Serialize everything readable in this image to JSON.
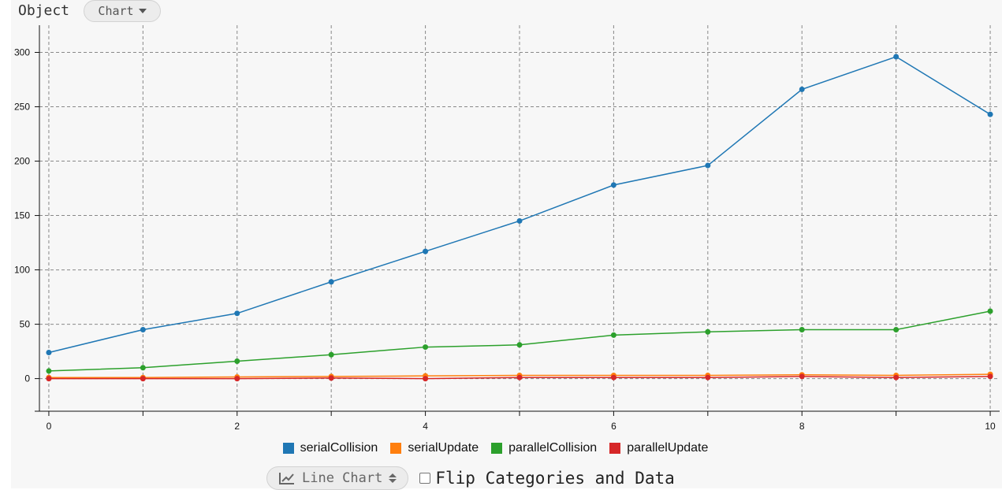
{
  "header": {
    "title": "Object",
    "mode_label": "Chart"
  },
  "controls": {
    "chart_type_label": "Line Chart",
    "flip_label": "Flip Categories and Data"
  },
  "icons": {
    "mode_caret": "caret-down-icon",
    "chart_type": "line-chart-icon",
    "chart_type_sort": "sort-icon"
  },
  "chart_data": {
    "type": "line",
    "x": [
      0,
      1,
      2,
      3,
      4,
      5,
      6,
      7,
      8,
      9,
      10
    ],
    "xticks": [
      0,
      2,
      4,
      6,
      8,
      10
    ],
    "yticks": [
      0,
      50,
      100,
      150,
      200,
      250,
      300
    ],
    "xlim": [
      -0.1,
      10.1
    ],
    "ylim": [
      -30,
      325
    ],
    "grid": true,
    "legend_position": "bottom-center",
    "series": [
      {
        "name": "serialCollision",
        "color": "#1f77b4",
        "values": [
          24,
          45,
          60,
          89,
          117,
          145,
          178,
          196,
          266,
          296,
          243
        ]
      },
      {
        "name": "serialUpdate",
        "color": "#ff7f0e",
        "values": [
          1,
          1,
          1.5,
          2,
          2.5,
          3,
          3,
          3,
          3.5,
          3,
          4
        ]
      },
      {
        "name": "parallelCollision",
        "color": "#2ca02c",
        "values": [
          7,
          10,
          16,
          22,
          29,
          31,
          40,
          43,
          45,
          45,
          62
        ]
      },
      {
        "name": "parallelUpdate",
        "color": "#d62728",
        "values": [
          0,
          0,
          0,
          0.5,
          0,
          1,
          1,
          1,
          2,
          1,
          2
        ]
      }
    ]
  }
}
